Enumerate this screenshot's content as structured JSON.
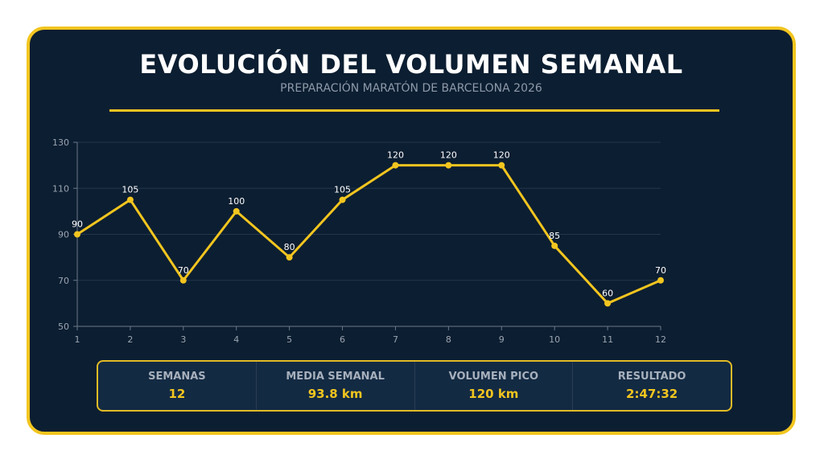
{
  "header": {
    "title": "EVOLUCIÓN DEL VOLUMEN SEMANAL",
    "subtitle": "PREPARACIÓN MARATÓN DE BARCELONA 2026"
  },
  "colors": {
    "background": "#0c1e31",
    "accent": "#f2c51f",
    "grid": "#22364d",
    "tick_text": "#9aa5b3",
    "label_text": "#ffffff"
  },
  "chart_data": {
    "type": "line",
    "title": "",
    "xlabel": "",
    "ylabel": "",
    "x": [
      1,
      2,
      3,
      4,
      5,
      6,
      7,
      8,
      9,
      10,
      11,
      12
    ],
    "series": [
      {
        "values": [
          90,
          105,
          70,
          100,
          80,
          105,
          120,
          120,
          120,
          85,
          60,
          70
        ]
      }
    ],
    "xlim": [
      1,
      12
    ],
    "ylim": [
      50,
      130
    ],
    "yticks": [
      50,
      70,
      90,
      110,
      130
    ],
    "grid": true,
    "data_labels": true
  },
  "stats": [
    {
      "label": "SEMANAS",
      "value": "12"
    },
    {
      "label": "MEDIA SEMANAL",
      "value": "93.8 km"
    },
    {
      "label": "VOLUMEN PICO",
      "value": "120 km"
    },
    {
      "label": "RESULTADO",
      "value": "2:47:32"
    }
  ]
}
